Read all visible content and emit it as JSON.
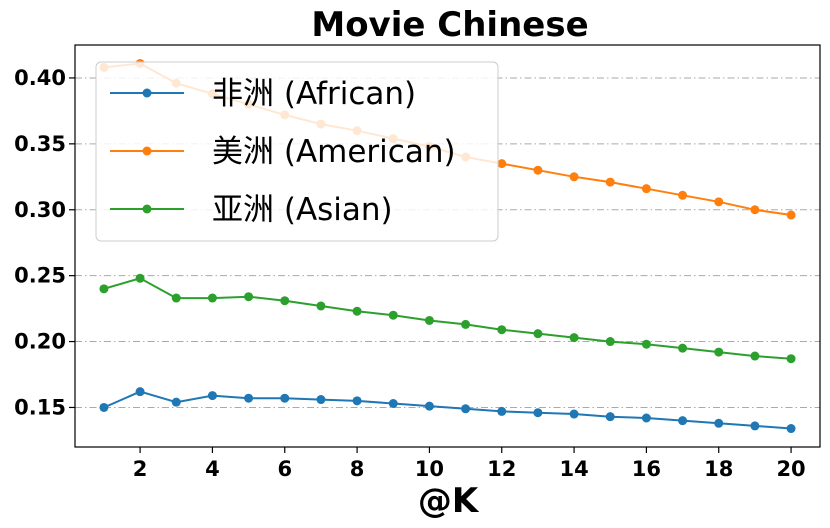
{
  "chart_data": {
    "type": "line",
    "title": "Movie Chinese",
    "xlabel": "@K",
    "ylabel": "",
    "xlim": [
      0.2,
      20.8
    ],
    "ylim": [
      0.12,
      0.425
    ],
    "xticks": [
      2,
      4,
      6,
      8,
      10,
      12,
      14,
      16,
      18,
      20
    ],
    "yticks": [
      0.15,
      0.2,
      0.25,
      0.3,
      0.35,
      0.4
    ],
    "ytick_labels": [
      "0.15",
      "0.20",
      "0.25",
      "0.30",
      "0.35",
      "0.40"
    ],
    "grid": "horizontal dash-dot",
    "legend_position": "upper-left",
    "x": [
      1,
      2,
      3,
      4,
      5,
      6,
      7,
      8,
      9,
      10,
      11,
      12,
      13,
      14,
      15,
      16,
      17,
      18,
      19,
      20
    ],
    "series": [
      {
        "name": "非洲 (African)",
        "color": "#1f77b4",
        "values": [
          0.15,
          0.162,
          0.154,
          0.159,
          0.157,
          0.157,
          0.156,
          0.155,
          0.153,
          0.151,
          0.149,
          0.147,
          0.146,
          0.145,
          0.143,
          0.142,
          0.14,
          0.138,
          0.136,
          0.134
        ]
      },
      {
        "name": "美洲 (American)",
        "color": "#ff7f0e",
        "values": [
          0.408,
          0.411,
          0.396,
          0.388,
          0.38,
          0.372,
          0.365,
          0.36,
          0.354,
          0.348,
          0.34,
          0.335,
          0.33,
          0.325,
          0.321,
          0.316,
          0.311,
          0.306,
          0.3,
          0.296
        ]
      },
      {
        "name": "亚洲 (Asian)",
        "color": "#2ca02c",
        "values": [
          0.24,
          0.248,
          0.233,
          0.233,
          0.234,
          0.231,
          0.227,
          0.223,
          0.22,
          0.216,
          0.213,
          0.209,
          0.206,
          0.203,
          0.2,
          0.198,
          0.195,
          0.192,
          0.189,
          0.187
        ]
      }
    ]
  }
}
